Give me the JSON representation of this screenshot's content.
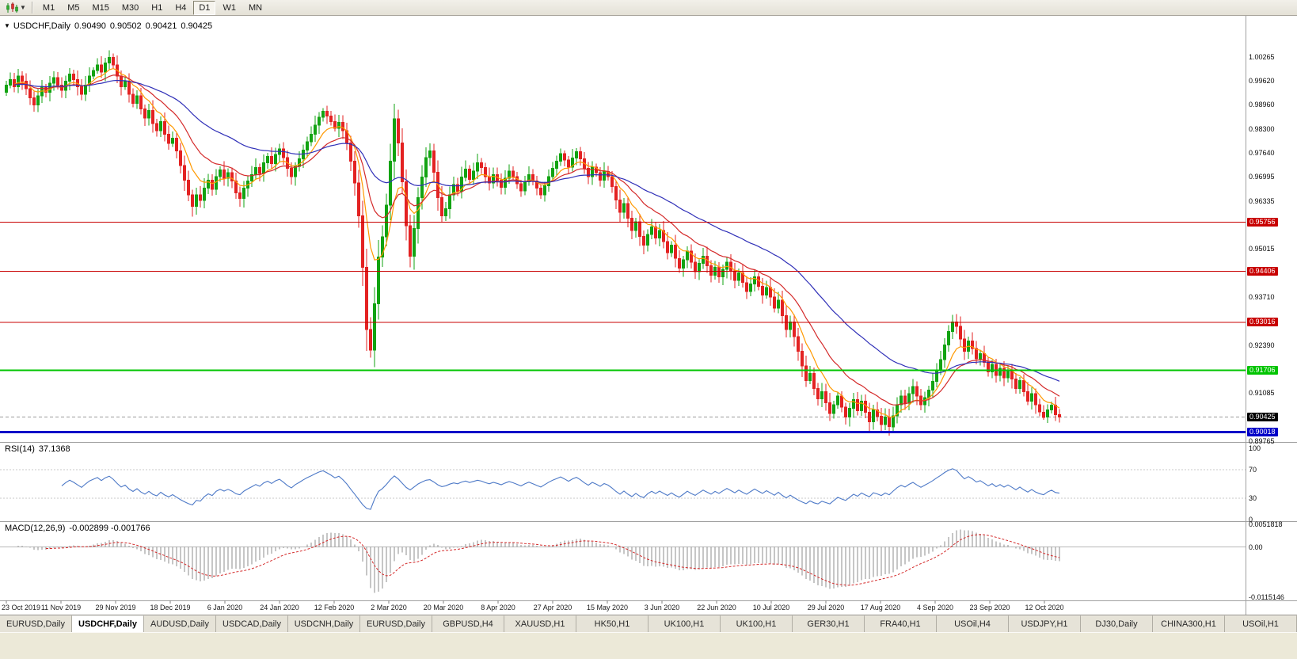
{
  "toolbar": {
    "timeframes": [
      "M1",
      "M5",
      "M15",
      "M30",
      "H1",
      "H4",
      "D1",
      "W1",
      "MN"
    ],
    "active_timeframe": "D1"
  },
  "chart": {
    "title": {
      "marker": "▼",
      "symbol": "USDCHF,Daily",
      "open": "0.90490",
      "high": "0.90502",
      "low": "0.90421",
      "close": "0.90425"
    }
  },
  "chart_data": {
    "type": "candlestick",
    "symbol": "USDCHF",
    "timeframe": "Daily",
    "current_ohlc": {
      "open": 0.9049,
      "high": 0.90502,
      "low": 0.90421,
      "close": 0.90425
    },
    "y_axis": {
      "range_max": 1.01391,
      "range_min": 0.89743,
      "ticks": [
        {
          "label": "1.00265",
          "value": 1.00265
        },
        {
          "label": "0.99620",
          "value": 0.9962
        },
        {
          "label": "0.98960",
          "value": 0.9896
        },
        {
          "label": "0.98300",
          "value": 0.983
        },
        {
          "label": "0.97640",
          "value": 0.9764
        },
        {
          "label": "0.96995",
          "value": 0.96995
        },
        {
          "label": "0.96335",
          "value": 0.96335
        },
        {
          "label": "0.95015",
          "value": 0.95015
        },
        {
          "label": "0.93710",
          "value": 0.9371
        },
        {
          "label": "0.92390",
          "value": 0.9239
        },
        {
          "label": "0.91085",
          "value": 0.91085
        },
        {
          "label": "0.89765",
          "value": 0.89765
        }
      ]
    },
    "x_labels": [
      "23 Oct 2019",
      "11 Nov 2019",
      "29 Nov 2019",
      "18 Dec 2019",
      "6 Jan 2020",
      "24 Jan 2020",
      "12 Feb 2020",
      "2 Mar 2020",
      "20 Mar 2020",
      "8 Apr 2020",
      "27 Apr 2020",
      "15 May 2020",
      "3 Jun 2020",
      "22 Jun 2020",
      "10 Jul 2020",
      "29 Jul 2020",
      "17 Aug 2020",
      "4 Sep 2020",
      "23 Sep 2020",
      "12 Oct 2020"
    ],
    "hlines": [
      {
        "value": 0.95756,
        "label": "0.95756",
        "color": "#c80000",
        "width": 1
      },
      {
        "value": 0.94406,
        "label": "0.94406",
        "color": "#c80000",
        "width": 1
      },
      {
        "value": 0.93016,
        "label": "0.93016",
        "color": "#c80000",
        "width": 1
      },
      {
        "value": 0.91706,
        "label": "0.91706",
        "color": "#00c400",
        "width": 2
      },
      {
        "value": 0.90018,
        "label": "0.90018",
        "color": "#0000c8",
        "width": 3
      }
    ],
    "current_price": {
      "value": 0.90425,
      "label": "0.90425",
      "line_color": "#9a9a9a",
      "label_bg": "#000000"
    },
    "colors": {
      "up": "#12a312",
      "down": "#e32222",
      "ma_fast": "#ff9900",
      "ma_mid": "#d42a2a",
      "ma_slow": "#3030b8"
    },
    "moving_averages": [
      {
        "type": "ema",
        "period": 8,
        "color_key": "ma_fast"
      },
      {
        "type": "ema",
        "period": 18,
        "color_key": "ma_mid"
      },
      {
        "type": "ema",
        "period": 45,
        "color_key": "ma_slow"
      }
    ],
    "first_open": 0.993,
    "closes": [
      0.995,
      0.9965,
      0.9945,
      0.9975,
      0.996,
      0.994,
      0.9915,
      0.9895,
      0.992,
      0.9945,
      0.993,
      0.9955,
      0.997,
      0.995,
      0.9935,
      0.996,
      0.998,
      0.9965,
      0.9945,
      0.9925,
      0.995,
      0.9975,
      0.999,
      1.0005,
      0.9985,
      1.001,
      1.0025,
      1.0005,
      0.9975,
      0.9945,
      0.996,
      0.9925,
      0.99,
      0.992,
      0.9885,
      0.986,
      0.988,
      0.9845,
      0.9825,
      0.985,
      0.9815,
      0.979,
      0.9805,
      0.977,
      0.973,
      0.969,
      0.965,
      0.9618,
      0.965,
      0.9635,
      0.9668,
      0.969,
      0.9665,
      0.97,
      0.9718,
      0.9695,
      0.971,
      0.9688,
      0.9655,
      0.964,
      0.9668,
      0.9688,
      0.9705,
      0.9725,
      0.9708,
      0.9738,
      0.9755,
      0.9735,
      0.976,
      0.9775,
      0.9752,
      0.9722,
      0.97,
      0.9728,
      0.9748,
      0.9772,
      0.9795,
      0.9815,
      0.984,
      0.9862,
      0.9878,
      0.9865,
      0.985,
      0.9832,
      0.9848,
      0.9825,
      0.9792,
      0.9742,
      0.9682,
      0.9592,
      0.9452,
      0.9282,
      0.9225,
      0.9352,
      0.948,
      0.9535,
      0.9622,
      0.9742,
      0.9858,
      0.9792,
      0.9685,
      0.9565,
      0.9482,
      0.9558,
      0.9642,
      0.9698,
      0.9752,
      0.977,
      0.9712,
      0.9642,
      0.9592,
      0.9612,
      0.965,
      0.9678,
      0.966,
      0.9698,
      0.972,
      0.9692,
      0.9715,
      0.9738,
      0.9725,
      0.97,
      0.9682,
      0.9705,
      0.969,
      0.967,
      0.9695,
      0.9715,
      0.97,
      0.968,
      0.966,
      0.9685,
      0.9705,
      0.9688,
      0.9668,
      0.965,
      0.9675,
      0.97,
      0.9722,
      0.9742,
      0.9762,
      0.9745,
      0.9725,
      0.975,
      0.9768,
      0.9748,
      0.9722,
      0.97,
      0.9726,
      0.971,
      0.969,
      0.9714,
      0.97,
      0.9672,
      0.9636,
      0.9602,
      0.9626,
      0.9586,
      0.9552,
      0.9576,
      0.9536,
      0.9512,
      0.9542,
      0.9562,
      0.9532,
      0.9552,
      0.9522,
      0.9492,
      0.9512,
      0.9476,
      0.945,
      0.9472,
      0.9496,
      0.9466,
      0.944,
      0.9462,
      0.9482,
      0.9456,
      0.943,
      0.9452,
      0.9426,
      0.9446,
      0.9466,
      0.9442,
      0.9416,
      0.9436,
      0.941,
      0.9386,
      0.9406,
      0.9426,
      0.94,
      0.9376,
      0.9396,
      0.937,
      0.934,
      0.9362,
      0.932,
      0.9282,
      0.9302,
      0.9262,
      0.9222,
      0.9182,
      0.9142,
      0.9162,
      0.912,
      0.9092,
      0.9112,
      0.9082,
      0.9052,
      0.9076,
      0.91,
      0.907,
      0.9042,
      0.9066,
      0.909,
      0.906,
      0.9086,
      0.9056,
      0.903,
      0.9062,
      0.9045,
      0.9022,
      0.9042,
      0.9016,
      0.9046,
      0.9076,
      0.91,
      0.908,
      0.9106,
      0.9126,
      0.91,
      0.9076,
      0.9096,
      0.9116,
      0.914,
      0.917,
      0.92,
      0.924,
      0.9276,
      0.9302,
      0.929,
      0.9256,
      0.9222,
      0.925,
      0.923,
      0.9202,
      0.9216,
      0.9192,
      0.9166,
      0.9186,
      0.9156,
      0.9176,
      0.915,
      0.917,
      0.9146,
      0.912,
      0.9142,
      0.9112,
      0.9086,
      0.9106,
      0.9076,
      0.9056,
      0.9042,
      0.9062,
      0.9075,
      0.9049,
      0.90425
    ]
  },
  "rsi_panel": {
    "name": "RSI(14)",
    "value": "37.1368",
    "period": 14,
    "color": "#4d79c7",
    "levels": [
      70,
      30
    ],
    "axis": [
      {
        "label": "100",
        "value": 100
      },
      {
        "label": "70",
        "value": 70
      },
      {
        "label": "30",
        "value": 30
      },
      {
        "label": "0",
        "value": 0
      }
    ]
  },
  "macd_panel": {
    "name": "MACD(12,26,9)",
    "values": "-0.002899 -0.001766",
    "fast": 12,
    "slow": 26,
    "signal": 9,
    "histogram_color": "#8e8e8e",
    "signal_color": "#d42a2a",
    "scale": {
      "max": 0.0051818,
      "min": -0.0115146
    },
    "axis": [
      {
        "label": "0.0051818",
        "value": 0.0051818
      },
      {
        "label": "0.00",
        "value": 0
      },
      {
        "label": "-0.0115146",
        "value": -0.0115146
      }
    ]
  },
  "tabs": {
    "active_index": 1,
    "items": [
      "EURUSD,Daily",
      "USDCHF,Daily",
      "AUDUSD,Daily",
      "USDCAD,Daily",
      "USDCNH,Daily",
      "EURUSD,Daily",
      "GBPUSD,H4",
      "XAUUSD,H1",
      "HK50,H1",
      "UK100,H1",
      "UK100,H1",
      "GER30,H1",
      "FRA40,H1",
      "USOil,H4",
      "USDJPY,H1",
      "DJ30,Daily",
      "CHINA300,H1",
      "USOil,H1"
    ]
  }
}
